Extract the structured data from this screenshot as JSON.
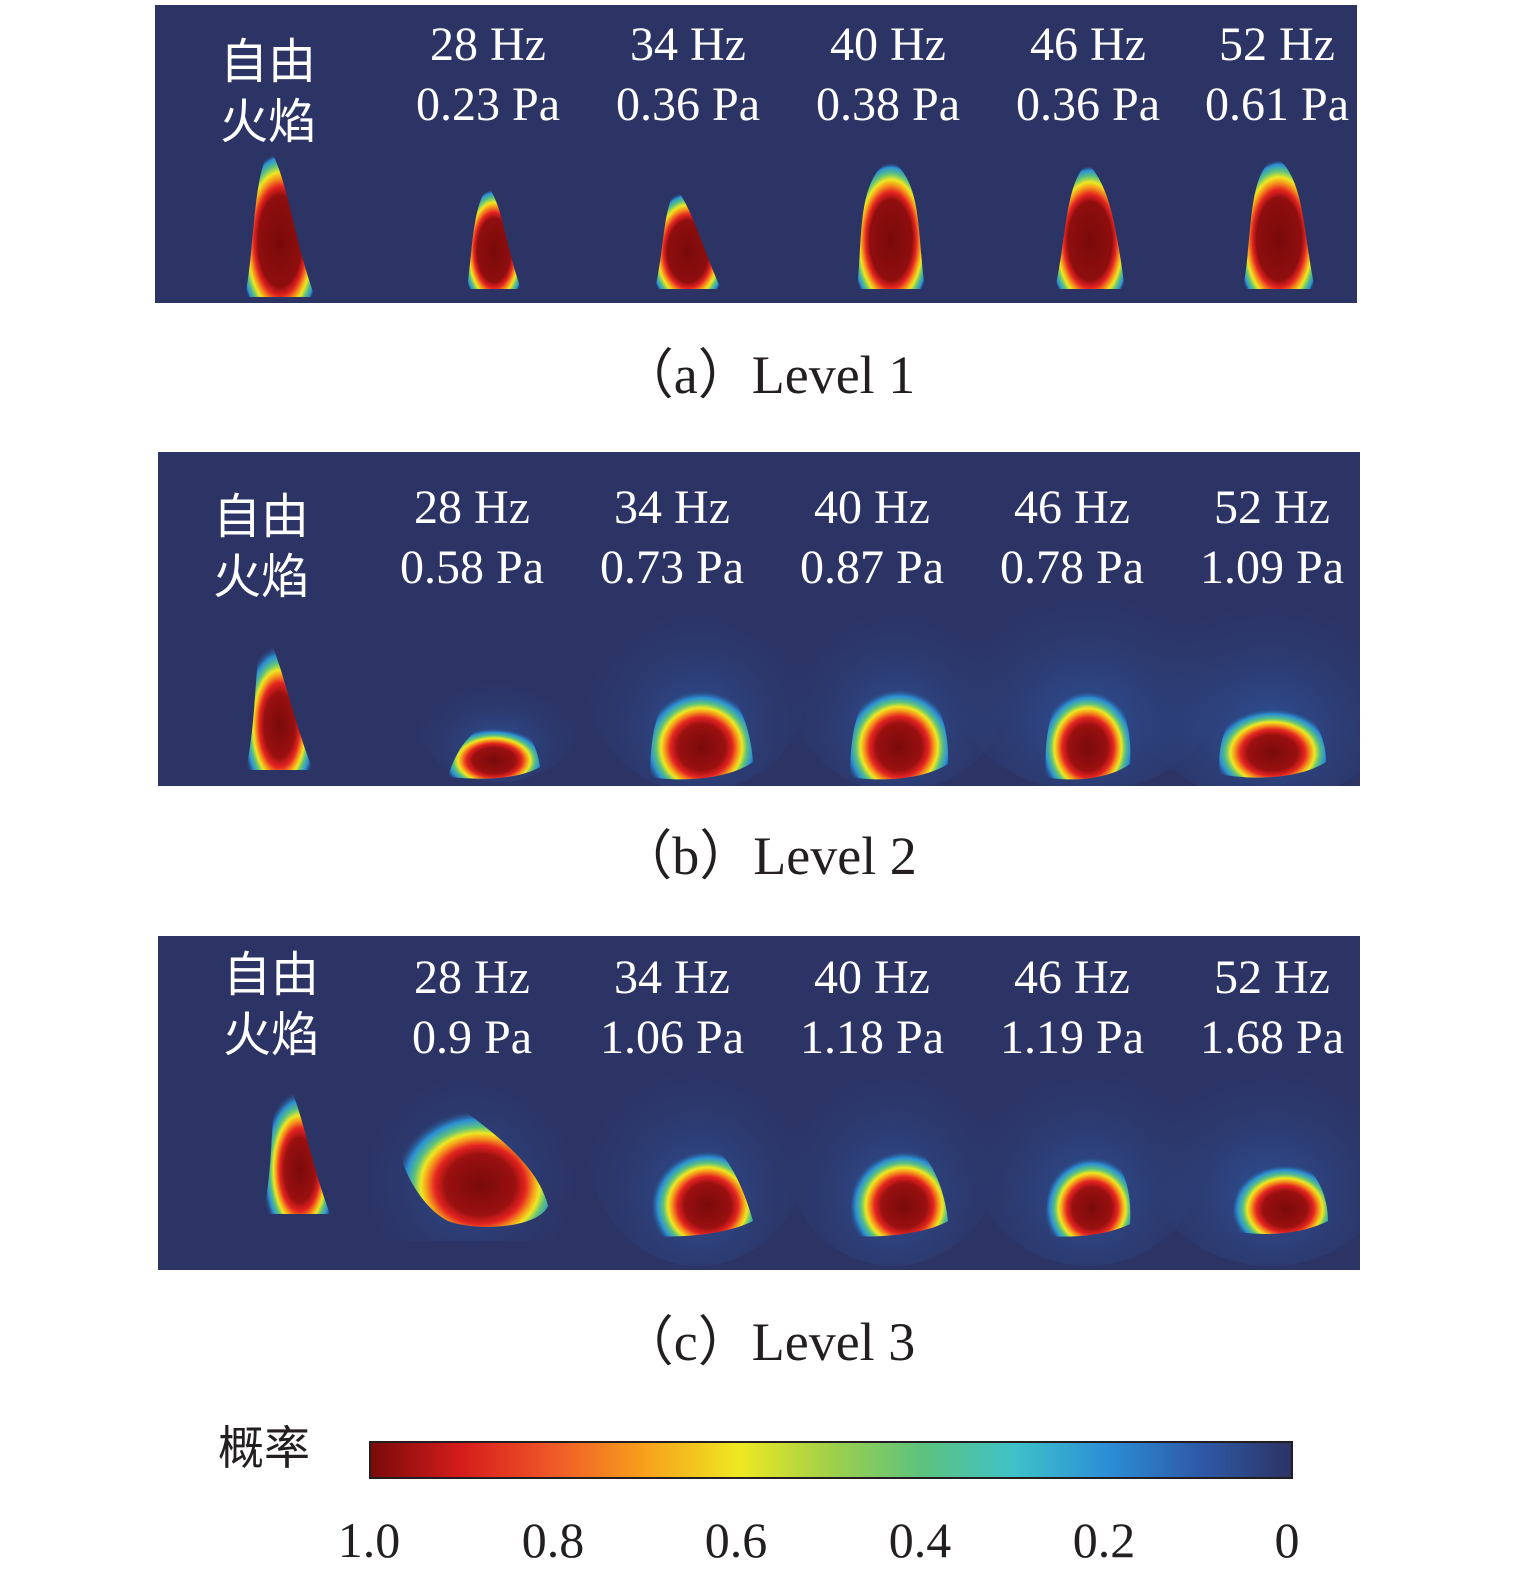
{
  "panels": [
    {
      "caption": "（a）Level 1",
      "free_flame_label": [
        "自由",
        "火焰"
      ],
      "conditions": [
        {
          "freq": "28 Hz",
          "pressure": "0.23 Pa"
        },
        {
          "freq": "34 Hz",
          "pressure": "0.36 Pa"
        },
        {
          "freq": "40 Hz",
          "pressure": "0.38 Pa"
        },
        {
          "freq": "46 Hz",
          "pressure": "0.36 Pa"
        },
        {
          "freq": "52 Hz",
          "pressure": "0.61 Pa"
        }
      ]
    },
    {
      "caption": "（b）Level 2",
      "free_flame_label": [
        "自由",
        "火焰"
      ],
      "conditions": [
        {
          "freq": "28 Hz",
          "pressure": "0.58 Pa"
        },
        {
          "freq": "34 Hz",
          "pressure": "0.73 Pa"
        },
        {
          "freq": "40 Hz",
          "pressure": "0.87 Pa"
        },
        {
          "freq": "46 Hz",
          "pressure": "0.78 Pa"
        },
        {
          "freq": "52 Hz",
          "pressure": "1.09 Pa"
        }
      ]
    },
    {
      "caption": "（c）Level 3",
      "free_flame_label": [
        "自由",
        "火焰"
      ],
      "conditions": [
        {
          "freq": "28 Hz",
          "pressure": "0.9 Pa"
        },
        {
          "freq": "34 Hz",
          "pressure": "1.06 Pa"
        },
        {
          "freq": "40 Hz",
          "pressure": "1.18 Pa"
        },
        {
          "freq": "46 Hz",
          "pressure": "1.19 Pa"
        },
        {
          "freq": "52 Hz",
          "pressure": "1.68 Pa"
        }
      ]
    }
  ],
  "colorbar": {
    "title": "概率",
    "ticks": [
      "1.0",
      "0.8",
      "0.6",
      "0.4",
      "0.2",
      "0"
    ],
    "range": [
      1.0,
      0
    ],
    "colormap": "jet-reversed"
  },
  "colors": {
    "background": "#2c3465",
    "jet": [
      "#7a0a0a",
      "#d61d1c",
      "#f05a28",
      "#f7a21b",
      "#eee821",
      "#9fd04a",
      "#5cc27e",
      "#3ec1c9",
      "#2b8fd6",
      "#2e5aa8",
      "#2c3465"
    ]
  }
}
